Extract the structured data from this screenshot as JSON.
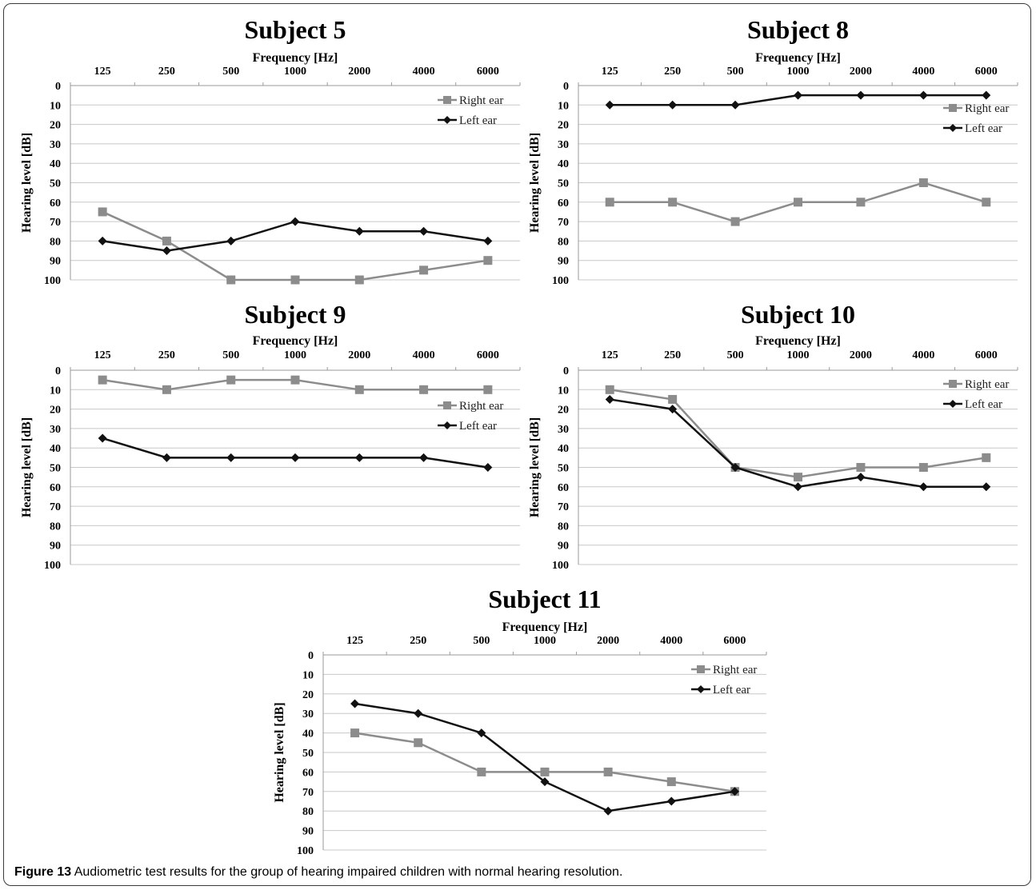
{
  "caption": {
    "label": "Figure 13",
    "text": "Audiometric test results for the group of hearing impaired children with normal hearing resolution."
  },
  "chart_data": [
    {
      "type": "line",
      "title": "Subject 5",
      "xlabel": "Frequency [Hz]",
      "ylabel": "Hearing level [dB]",
      "categories": [
        "125",
        "250",
        "500",
        "1000",
        "2000",
        "4000",
        "6000"
      ],
      "yticks": [
        "0",
        "10",
        "20",
        "30",
        "40",
        "50",
        "60",
        "70",
        "80",
        "90",
        "100"
      ],
      "ylim": [
        0,
        100
      ],
      "y_inverted": true,
      "x_axis_position": "top",
      "grid": true,
      "legend_position": "top-right",
      "series": [
        {
          "name": "Right ear",
          "marker": "square",
          "color": "#8c8c8c",
          "values": [
            65,
            80,
            100,
            100,
            100,
            95,
            90
          ]
        },
        {
          "name": "Left ear",
          "marker": "diamond",
          "color": "#111111",
          "values": [
            80,
            85,
            80,
            70,
            75,
            75,
            80
          ]
        }
      ]
    },
    {
      "type": "line",
      "title": "Subject 8",
      "xlabel": "Frequency [Hz]",
      "ylabel": "Hearing level [dB]",
      "categories": [
        "125",
        "250",
        "500",
        "1000",
        "2000",
        "4000",
        "6000"
      ],
      "yticks": [
        "0",
        "10",
        "20",
        "30",
        "40",
        "50",
        "60",
        "70",
        "80",
        "90",
        "100"
      ],
      "ylim": [
        0,
        100
      ],
      "y_inverted": true,
      "x_axis_position": "top",
      "grid": true,
      "legend_position": "top-right",
      "series": [
        {
          "name": "Right ear",
          "marker": "square",
          "color": "#8c8c8c",
          "values": [
            60,
            60,
            70,
            60,
            60,
            50,
            60
          ]
        },
        {
          "name": "Left ear",
          "marker": "diamond",
          "color": "#111111",
          "values": [
            10,
            10,
            10,
            5,
            5,
            5,
            5
          ]
        }
      ]
    },
    {
      "type": "line",
      "title": "Subject 9",
      "xlabel": "Frequency [Hz]",
      "ylabel": "Hearing level [dB]",
      "categories": [
        "125",
        "250",
        "500",
        "1000",
        "2000",
        "4000",
        "6000"
      ],
      "yticks": [
        "0",
        "10",
        "20",
        "30",
        "40",
        "50",
        "60",
        "70",
        "80",
        "90",
        "100"
      ],
      "ylim": [
        0,
        100
      ],
      "y_inverted": true,
      "x_axis_position": "top",
      "grid": true,
      "legend_position": "top-right",
      "series": [
        {
          "name": "Right ear",
          "marker": "square",
          "color": "#8c8c8c",
          "values": [
            5,
            10,
            5,
            5,
            10,
            10,
            10
          ]
        },
        {
          "name": "Left ear",
          "marker": "diamond",
          "color": "#111111",
          "values": [
            35,
            45,
            45,
            45,
            45,
            45,
            50
          ]
        }
      ]
    },
    {
      "type": "line",
      "title": "Subject 10",
      "xlabel": "Frequency [Hz]",
      "ylabel": "Hearing level [dB]",
      "categories": [
        "125",
        "250",
        "500",
        "1000",
        "2000",
        "4000",
        "6000"
      ],
      "yticks": [
        "0",
        "10",
        "20",
        "30",
        "40",
        "50",
        "60",
        "70",
        "80",
        "90",
        "100"
      ],
      "ylim": [
        0,
        100
      ],
      "y_inverted": true,
      "x_axis_position": "top",
      "grid": true,
      "legend_position": "top-right",
      "series": [
        {
          "name": "Right ear",
          "marker": "square",
          "color": "#8c8c8c",
          "values": [
            10,
            15,
            50,
            55,
            50,
            50,
            45
          ]
        },
        {
          "name": "Left ear",
          "marker": "diamond",
          "color": "#111111",
          "values": [
            15,
            20,
            50,
            60,
            55,
            60,
            60
          ]
        }
      ]
    },
    {
      "type": "line",
      "title": "Subject 11",
      "xlabel": "Frequency [Hz]",
      "ylabel": "Hearing level [dB]",
      "categories": [
        "125",
        "250",
        "500",
        "1000",
        "2000",
        "4000",
        "6000"
      ],
      "yticks": [
        "0",
        "10",
        "20",
        "30",
        "40",
        "50",
        "60",
        "70",
        "80",
        "90",
        "100"
      ],
      "ylim": [
        0,
        100
      ],
      "y_inverted": true,
      "x_axis_position": "top",
      "grid": true,
      "legend_position": "top-right",
      "series": [
        {
          "name": "Right ear",
          "marker": "square",
          "color": "#8c8c8c",
          "values": [
            40,
            45,
            60,
            60,
            60,
            65,
            70
          ]
        },
        {
          "name": "Left ear",
          "marker": "diamond",
          "color": "#111111",
          "values": [
            25,
            30,
            40,
            65,
            80,
            75,
            70
          ]
        }
      ]
    }
  ]
}
